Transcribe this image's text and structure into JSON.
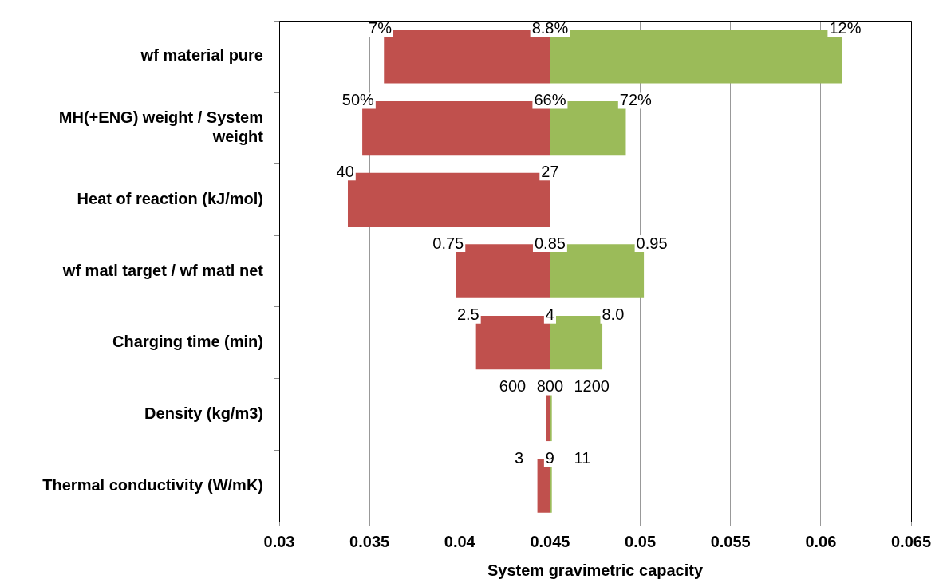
{
  "chart_data": {
    "type": "bar",
    "orientation": "horizontal",
    "xlabel": "System gravimetric capacity",
    "categories": [
      "wf material pure",
      "MH(+ENG) weight / System weight",
      "Heat of reaction (kJ/mol)",
      "wf matl target / wf matl net",
      "Charging time (min)",
      "Density (kg/m3)",
      "Thermal conductivity (W/mK)"
    ],
    "series": [
      {
        "color": "#c0504d",
        "base": [
          0.045,
          0.045,
          0.045,
          0.045,
          0.045,
          0.045,
          0.045
        ],
        "values": [
          -0.0092,
          -0.0104,
          -0.0112,
          -0.0052,
          -0.0041,
          -0.0002,
          -0.0007
        ]
      },
      {
        "color": "#9bbb59",
        "base": [
          0.045,
          0.045,
          null,
          0.045,
          0.045,
          0.045,
          0.045
        ],
        "values": [
          0.0162,
          0.0042,
          null,
          0.0052,
          0.0029,
          0.0001,
          0.0001
        ]
      }
    ],
    "xlim": [
      0.03,
      0.065
    ],
    "xticks": [
      0.03,
      0.035,
      0.04,
      0.045,
      0.05,
      0.055,
      0.06,
      0.065
    ],
    "grid": "x",
    "legend": false,
    "annotations": [
      {
        "text": "7%",
        "x": 0.0358,
        "y": "wf material pure"
      },
      {
        "text": "8.8%",
        "x": 0.045,
        "y": "wf material pure"
      },
      {
        "text": "12%",
        "x": 0.0612,
        "y": "wf material pure"
      },
      {
        "text": "50%",
        "x": 0.0346,
        "y": "MH(+ENG) weight / System weight"
      },
      {
        "text": "66%",
        "x": 0.045,
        "y": "MH(+ENG) weight / System weight"
      },
      {
        "text": "72%",
        "x": 0.0492,
        "y": "MH(+ENG) weight / System weight"
      },
      {
        "text": "40",
        "x": 0.0338,
        "y": "Heat of reaction (kJ/mol)"
      },
      {
        "text": "27",
        "x": 0.045,
        "y": "Heat of reaction (kJ/mol)"
      },
      {
        "text": "0.75",
        "x": 0.0398,
        "y": "wf matl target / wf matl net"
      },
      {
        "text": "0.85",
        "x": 0.045,
        "y": "wf matl target / wf matl net"
      },
      {
        "text": "0.95",
        "x": 0.0502,
        "y": "wf matl target / wf matl net"
      },
      {
        "text": "2.5",
        "x": 0.0409,
        "y": "Charging time (min)"
      },
      {
        "text": "4",
        "x": 0.045,
        "y": "Charging time (min)"
      },
      {
        "text": "8.0",
        "x": 0.0479,
        "y": "Charging time (min)"
      },
      {
        "text": "600",
        "x": 0.0448,
        "y": "Density (kg/m3)"
      },
      {
        "text": "800",
        "x": 0.045,
        "y": "Density (kg/m3)"
      },
      {
        "text": "1200",
        "x": 0.0451,
        "y": "Density (kg/m3)"
      },
      {
        "text": "3",
        "x": 0.0443,
        "y": "Thermal conductivity (W/mK)"
      },
      {
        "text": "9",
        "x": 0.045,
        "y": "Thermal conductivity (W/mK)"
      },
      {
        "text": "11",
        "x": 0.0451,
        "y": "Thermal conductivity (W/mK)"
      }
    ]
  }
}
